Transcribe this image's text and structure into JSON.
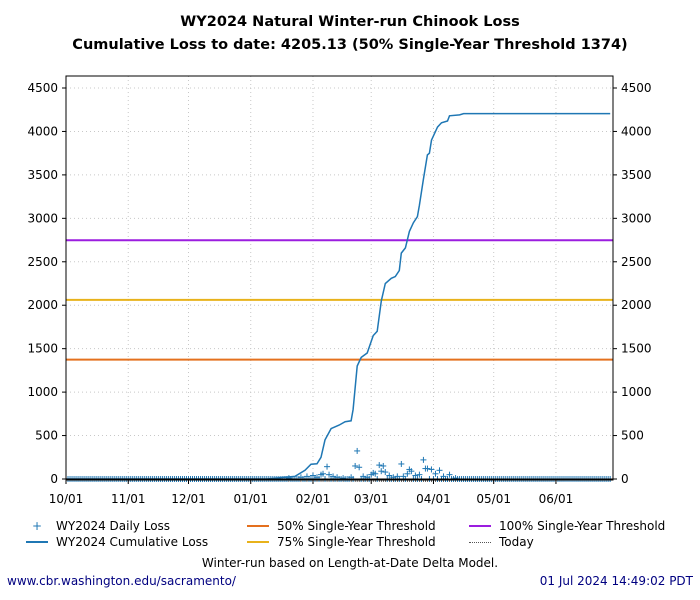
{
  "title_line1": "WY2024 Natural Winter-run Chinook Loss",
  "title_line2": "Cumulative Loss to date: 4205.13 (50% Single-Year Threshold 1374)",
  "note": "Winter-run based on Length-at-Date Delta Model.",
  "footer_left": "www.cbr.washington.edu/sacramento/",
  "footer_right": "01 Jul 2024 14:49:02 PDT",
  "chart_data": {
    "type": "line",
    "title": "WY2024 Natural Winter-run Chinook Loss",
    "xlim": [
      "2023-10-01",
      "2024-06-30"
    ],
    "ylim": [
      0,
      4600
    ],
    "x_ticks": [
      "10/01",
      "11/01",
      "12/01",
      "01/01",
      "02/01",
      "03/01",
      "04/01",
      "05/01",
      "06/01"
    ],
    "x_tick_dates": [
      "2023-10-01",
      "2023-11-01",
      "2023-12-01",
      "2024-01-01",
      "2024-02-01",
      "2024-03-01",
      "2024-04-01",
      "2024-05-01",
      "2024-06-01"
    ],
    "y_ticks": [
      "0",
      "500",
      "1000",
      "1500",
      "2000",
      "2500",
      "3000",
      "3500",
      "4000",
      "4500"
    ],
    "grid": true,
    "legend_placement": "bottom",
    "series": [
      {
        "name": "WY2024 Daily Loss",
        "kind": "scatter",
        "marker": "+",
        "color": "#1f77b4",
        "start": "2023-10-01",
        "end": "2024-06-28",
        "nonzero_points": [
          [
            "2024-01-20",
            10
          ],
          [
            "2024-01-26",
            20
          ],
          [
            "2024-01-29",
            30
          ],
          [
            "2024-02-01",
            40
          ],
          [
            "2024-02-03",
            20
          ],
          [
            "2024-02-05",
            50
          ],
          [
            "2024-02-06",
            60
          ],
          [
            "2024-02-08",
            142
          ],
          [
            "2024-02-09",
            50
          ],
          [
            "2024-02-11",
            30
          ],
          [
            "2024-02-13",
            20
          ],
          [
            "2024-02-16",
            10
          ],
          [
            "2024-02-20",
            20
          ],
          [
            "2024-02-22",
            150
          ],
          [
            "2024-02-23",
            323
          ],
          [
            "2024-02-24",
            135
          ],
          [
            "2024-02-26",
            30
          ],
          [
            "2024-02-28",
            20
          ],
          [
            "2024-03-01",
            50
          ],
          [
            "2024-03-02",
            70
          ],
          [
            "2024-03-03",
            60
          ],
          [
            "2024-03-05",
            160
          ],
          [
            "2024-03-06",
            90
          ],
          [
            "2024-03-07",
            150
          ],
          [
            "2024-03-08",
            80
          ],
          [
            "2024-03-10",
            40
          ],
          [
            "2024-03-12",
            20
          ],
          [
            "2024-03-14",
            30
          ],
          [
            "2024-03-16",
            173
          ],
          [
            "2024-03-17",
            30
          ],
          [
            "2024-03-19",
            60
          ],
          [
            "2024-03-20",
            110
          ],
          [
            "2024-03-21",
            90
          ],
          [
            "2024-03-23",
            40
          ],
          [
            "2024-03-25",
            50
          ],
          [
            "2024-03-27",
            220
          ],
          [
            "2024-03-28",
            120
          ],
          [
            "2024-03-29",
            120
          ],
          [
            "2024-03-31",
            110
          ],
          [
            "2024-04-02",
            60
          ],
          [
            "2024-04-04",
            100
          ],
          [
            "2024-04-06",
            30
          ],
          [
            "2024-04-09",
            50
          ],
          [
            "2024-04-12",
            10
          ]
        ]
      },
      {
        "name": "WY2024 Cumulative Loss",
        "kind": "line",
        "color": "#1f77b4",
        "points": [
          [
            "2023-10-01",
            0
          ],
          [
            "2024-01-09",
            0
          ],
          [
            "2024-01-18",
            20
          ],
          [
            "2024-01-23",
            30
          ],
          [
            "2024-01-28",
            100
          ],
          [
            "2024-01-31",
            170
          ],
          [
            "2024-02-03",
            175
          ],
          [
            "2024-02-05",
            250
          ],
          [
            "2024-02-07",
            450
          ],
          [
            "2024-02-10",
            580
          ],
          [
            "2024-02-14",
            620
          ],
          [
            "2024-02-17",
            660
          ],
          [
            "2024-02-20",
            670
          ],
          [
            "2024-02-21",
            800
          ],
          [
            "2024-02-23",
            1300
          ],
          [
            "2024-02-25",
            1400
          ],
          [
            "2024-02-28",
            1450
          ],
          [
            "2024-03-02",
            1650
          ],
          [
            "2024-03-04",
            1700
          ],
          [
            "2024-03-06",
            2050
          ],
          [
            "2024-03-08",
            2250
          ],
          [
            "2024-03-11",
            2310
          ],
          [
            "2024-03-13",
            2330
          ],
          [
            "2024-03-15",
            2400
          ],
          [
            "2024-03-16",
            2600
          ],
          [
            "2024-03-18",
            2660
          ],
          [
            "2024-03-20",
            2850
          ],
          [
            "2024-03-22",
            2950
          ],
          [
            "2024-03-24",
            3020
          ],
          [
            "2024-03-25",
            3150
          ],
          [
            "2024-03-27",
            3450
          ],
          [
            "2024-03-29",
            3730
          ],
          [
            "2024-03-30",
            3750
          ],
          [
            "2024-03-31",
            3900
          ],
          [
            "2024-04-03",
            4050
          ],
          [
            "2024-04-05",
            4100
          ],
          [
            "2024-04-08",
            4120
          ],
          [
            "2024-04-09",
            4180
          ],
          [
            "2024-04-14",
            4190
          ],
          [
            "2024-04-16",
            4205.13
          ],
          [
            "2024-06-28",
            4205.13
          ]
        ]
      },
      {
        "name": "50% Single-Year Threshold",
        "kind": "hline",
        "value": 1374,
        "color": "#e4701e"
      },
      {
        "name": "75% Single-Year Threshold",
        "kind": "hline",
        "value": 2061,
        "color": "#e8b21b"
      },
      {
        "name": "100% Single-Year Threshold",
        "kind": "hline",
        "value": 2748,
        "color": "#9b1ddf"
      },
      {
        "name": "Today",
        "kind": "vline",
        "value": "2024-07-01",
        "color": "#555555",
        "dash": "dotted"
      }
    ]
  }
}
